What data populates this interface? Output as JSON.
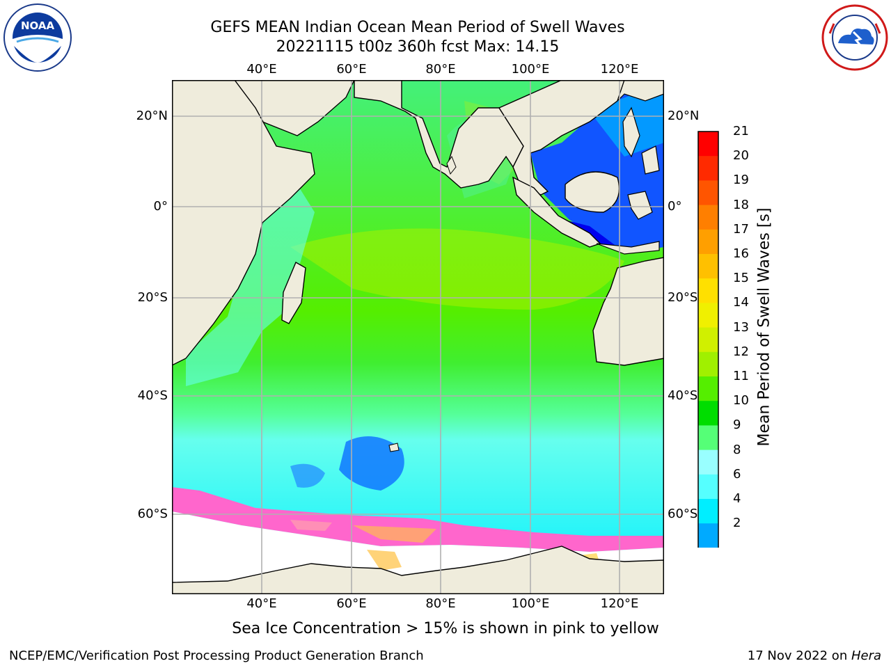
{
  "header": {
    "title_line1": "GEFS MEAN Indian Ocean Mean Period of Swell Waves",
    "title_line2": "20221115 t00z 360h fcst   Max: 14.15"
  },
  "logos": {
    "left": "NOAA",
    "left_ring_text": "NATIONAL OCEANIC AND ATMOSPHERIC ADMINISTRATION · U.S. DEPARTMENT OF COMMERCE",
    "right_ring_text": "NATIONAL WEATHER SERVICE"
  },
  "map": {
    "lon_labels": [
      "40°E",
      "60°E",
      "80°E",
      "100°E",
      "120°E"
    ],
    "lat_labels": [
      "20°N",
      "0°",
      "20°S",
      "40°S",
      "60°S"
    ],
    "lat_labels_right": [
      "20°N",
      "0°",
      "20°S",
      "40°S",
      "60°S"
    ],
    "land_color": "#efecdc",
    "grid_color": "#b0b0b0"
  },
  "colorbar": {
    "title": "Mean Period of Swell Waves [s]",
    "ticks": [
      "21",
      "20",
      "19",
      "18",
      "17",
      "16",
      "15",
      "14",
      "13",
      "12",
      "11",
      "10",
      "9",
      "8",
      "6",
      "4",
      "2"
    ],
    "colors_top_to_bottom": [
      "#ff0000",
      "#ff2a00",
      "#ff5500",
      "#ff7f00",
      "#ff9f00",
      "#ffc000",
      "#ffe000",
      "#f0f000",
      "#d0f000",
      "#a0f000",
      "#55ee00",
      "#00dd00",
      "#55ff77",
      "#99ffff",
      "#55ffff",
      "#00eeff",
      "#00aaff",
      "#0055ff"
    ],
    "extend_color": "#0000ff"
  },
  "footer": {
    "note": "Sea Ice Concentration > 15% is shown in pink to yellow",
    "left": "NCEP/EMC/Verification Post Processing Product Generation Branch",
    "right_date": "17 Nov 2022 on ",
    "right_host": "Hera"
  }
}
